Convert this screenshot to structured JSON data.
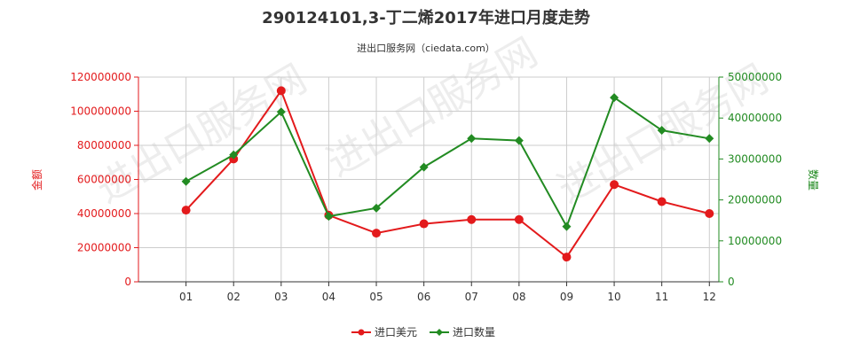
{
  "title": "290124101,3-丁二烯2017年进口月度走势",
  "subtitle": "进出口服务网（ciedata.com）",
  "colors": {
    "left_axis": "#e31a1c",
    "right_axis": "#228b22",
    "series_amount": "#e31a1c",
    "series_quantity": "#228b22",
    "grid": "#cccccc",
    "watermark": "#d8d8d8"
  },
  "chart_data": {
    "type": "line",
    "title": "290124101,3-丁二烯2017年进口月度走势",
    "categories": [
      "01",
      "02",
      "03",
      "04",
      "05",
      "06",
      "07",
      "08",
      "09",
      "10",
      "11",
      "12"
    ],
    "y_left": {
      "label": "金额",
      "ylim": [
        0,
        120000000
      ],
      "ticks": [
        "0",
        "20000000",
        "40000000",
        "60000000",
        "80000000",
        "100000000",
        "120000000"
      ]
    },
    "y_right": {
      "label": "数量",
      "ylim": [
        0,
        50000000
      ],
      "ticks": [
        "0",
        "10000000",
        "20000000",
        "30000000",
        "40000000",
        "50000000"
      ]
    },
    "series": [
      {
        "name": "进口美元",
        "axis": "left",
        "marker": "circle",
        "values": [
          42000000,
          72000000,
          112000000,
          39000000,
          28500000,
          34000000,
          36500000,
          36500000,
          14500000,
          57000000,
          47000000,
          40000000
        ]
      },
      {
        "name": "进口数量",
        "axis": "right",
        "marker": "diamond",
        "values": [
          24500000,
          31000000,
          41500000,
          16000000,
          18000000,
          28000000,
          35000000,
          34500000,
          13500000,
          45000000,
          37000000,
          35000000
        ]
      }
    ],
    "grid": true,
    "legend_position": "bottom-center"
  },
  "watermark_text": "进出口服务网"
}
